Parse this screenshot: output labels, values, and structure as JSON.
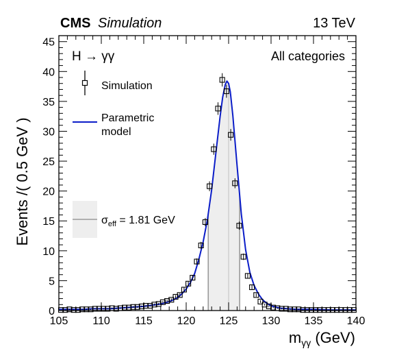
{
  "header": {
    "experiment": "CMS",
    "status": "Simulation",
    "energy": "13 TeV"
  },
  "chart_data": {
    "type": "line",
    "title": "",
    "process_label": "H → γγ",
    "category_label": "All categories",
    "xlabel_main": "m",
    "xlabel_sub": "γγ",
    "xlabel_unit": "(GeV)",
    "ylabel": "Events /( 0.5 GeV )",
    "xlim": [
      105,
      140
    ],
    "ylim": [
      0,
      46
    ],
    "xticks": [
      105,
      110,
      115,
      120,
      125,
      130,
      135,
      140
    ],
    "yticks": [
      0,
      5,
      10,
      15,
      20,
      25,
      30,
      35,
      40,
      45
    ],
    "grid": false,
    "legend_position": "top-left",
    "legend": {
      "simulation": "Simulation",
      "model_line1": "Parametric",
      "model_line2": "model",
      "sigma_symbol": "σ",
      "sigma_sub": "eff",
      "sigma_value": " = 1.81 GeV"
    },
    "sigma_eff_band": [
      122.6,
      126.3
    ],
    "simulation": {
      "x": [
        105.25,
        105.75,
        106.25,
        106.75,
        107.25,
        107.75,
        108.25,
        108.75,
        109.25,
        109.75,
        110.25,
        110.75,
        111.25,
        111.75,
        112.25,
        112.75,
        113.25,
        113.75,
        114.25,
        114.75,
        115.25,
        115.75,
        116.25,
        116.75,
        117.25,
        117.75,
        118.25,
        118.75,
        119.25,
        119.75,
        120.25,
        120.75,
        121.25,
        121.75,
        122.25,
        122.75,
        123.25,
        123.75,
        124.25,
        124.75,
        125.25,
        125.75,
        126.25,
        126.75,
        127.25,
        127.75,
        128.25,
        128.75,
        129.25,
        129.75,
        130.25,
        130.75,
        131.25,
        131.75,
        132.25,
        132.75,
        133.25,
        133.75,
        134.25,
        134.75,
        135.25,
        135.75,
        136.25,
        136.75,
        137.25,
        137.75,
        138.25,
        138.75,
        139.25,
        139.75
      ],
      "y": [
        0.1,
        0.1,
        0.2,
        0.1,
        0.1,
        0.2,
        0.2,
        0.2,
        0.3,
        0.3,
        0.3,
        0.3,
        0.4,
        0.3,
        0.4,
        0.5,
        0.5,
        0.6,
        0.6,
        0.7,
        0.8,
        0.8,
        1.0,
        1.1,
        1.4,
        1.6,
        1.8,
        2.3,
        2.6,
        3.5,
        4.5,
        5.5,
        8.2,
        10.9,
        14.8,
        20.8,
        27.0,
        33.8,
        38.6,
        36.7,
        29.4,
        21.3,
        14.2,
        9.0,
        5.8,
        3.9,
        2.6,
        1.5,
        1.0,
        0.7,
        0.5,
        0.4,
        0.3,
        0.3,
        0.2,
        0.2,
        0.2,
        0.1,
        0.1,
        0.1,
        0.1,
        0.1,
        0.1,
        0.1,
        0.1,
        0.1,
        0.1,
        0.1,
        0.1,
        0.1
      ]
    },
    "model": {
      "x": [
        105,
        106,
        107,
        108,
        109,
        110,
        111,
        112,
        113,
        114,
        115,
        116,
        117,
        118,
        118.5,
        119,
        119.5,
        120,
        120.5,
        121,
        121.5,
        122,
        122.5,
        123,
        123.5,
        124,
        124.3,
        124.6,
        124.8,
        125,
        125.2,
        125.5,
        126,
        126.5,
        127,
        127.5,
        128,
        128.5,
        129,
        129.5,
        130,
        131,
        132,
        133,
        134,
        135,
        137,
        140
      ],
      "y": [
        0.2,
        0.2,
        0.2,
        0.2,
        0.3,
        0.3,
        0.3,
        0.4,
        0.5,
        0.6,
        0.7,
        0.9,
        1.1,
        1.5,
        1.8,
        2.2,
        2.8,
        3.6,
        4.7,
        6.2,
        8.6,
        11.5,
        15.2,
        20.2,
        26.4,
        32.5,
        35.7,
        37.8,
        38.4,
        38.0,
        36.6,
        32.6,
        24.2,
        16.1,
        10.2,
        6.4,
        4.2,
        2.8,
        1.8,
        1.2,
        0.8,
        0.4,
        0.3,
        0.2,
        0.2,
        0.2,
        0.1,
        0.1
      ]
    },
    "colors": {
      "model_line": "#0a1cc8",
      "band_fill": "#eeeeee",
      "band_edge": "#9a9a9a",
      "marker": "#000000"
    }
  }
}
